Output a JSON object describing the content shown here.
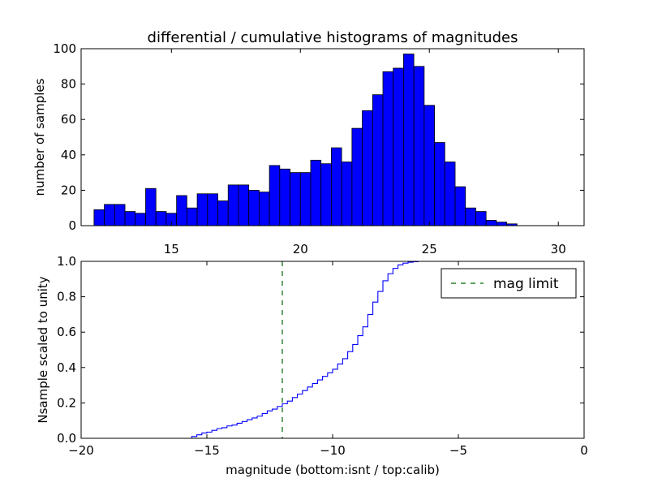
{
  "chart_data": [
    {
      "type": "bar",
      "title": "differential / cumulative histograms of magnitudes",
      "xlabel": "",
      "ylabel": "number of samples",
      "xlim": [
        11.5,
        31
      ],
      "ylim": [
        0,
        100
      ],
      "xticks": [
        "15",
        "20",
        "25",
        "30"
      ],
      "yticks": [
        "0",
        "20",
        "40",
        "60",
        "80",
        "100"
      ],
      "bar_color": "#0000ff",
      "bin_start": 12.0,
      "bin_width": 0.4,
      "values": [
        9,
        12,
        12,
        8,
        7,
        21,
        8,
        7,
        17,
        10,
        18,
        18,
        14,
        23,
        23,
        20,
        19,
        34,
        32,
        30,
        30,
        37,
        35,
        44,
        36,
        55,
        65,
        74,
        87,
        89,
        97,
        90,
        68,
        47,
        36,
        22,
        10,
        8,
        3,
        2,
        1
      ]
    },
    {
      "type": "line",
      "xlabel": "magnitude (bottom:isnt / top:calib)",
      "ylabel": "Nsample scaled to unity",
      "xlim": [
        -20,
        0
      ],
      "ylim": [
        0,
        1.0
      ],
      "xticks": [
        "−20",
        "−15",
        "−10",
        "−5",
        "0"
      ],
      "yticks": [
        "0.0",
        "0.2",
        "0.4",
        "0.6",
        "0.8",
        "1.0"
      ],
      "line_color": "#0000ff",
      "mag_limit": {
        "name": "mag limit",
        "x": -12.0,
        "color": "#006400"
      },
      "legend_position": "top-right",
      "step": {
        "x": [
          -20.0,
          -15.6,
          -15.4,
          -15.2,
          -15.0,
          -14.8,
          -14.6,
          -14.4,
          -14.2,
          -14.0,
          -13.8,
          -13.6,
          -13.4,
          -13.2,
          -13.0,
          -12.8,
          -12.6,
          -12.4,
          -12.2,
          -12.0,
          -11.8,
          -11.6,
          -11.4,
          -11.2,
          -11.0,
          -10.8,
          -10.6,
          -10.4,
          -10.2,
          -10.0,
          -9.8,
          -9.6,
          -9.4,
          -9.2,
          -9.0,
          -8.8,
          -8.6,
          -8.4,
          -8.2,
          -8.0,
          -7.8,
          -7.6,
          -7.4,
          -7.2,
          -7.0,
          -6.8,
          -6.6,
          -6.4,
          -6.2,
          -6.0,
          -0.05
        ],
        "y": [
          0.0,
          0.01,
          0.02,
          0.03,
          0.035,
          0.045,
          0.055,
          0.06,
          0.07,
          0.075,
          0.085,
          0.095,
          0.105,
          0.115,
          0.125,
          0.14,
          0.155,
          0.165,
          0.18,
          0.195,
          0.21,
          0.23,
          0.25,
          0.27,
          0.29,
          0.31,
          0.33,
          0.35,
          0.37,
          0.39,
          0.42,
          0.45,
          0.49,
          0.53,
          0.58,
          0.63,
          0.7,
          0.77,
          0.83,
          0.89,
          0.93,
          0.96,
          0.98,
          0.99,
          0.995,
          0.998,
          1.0,
          1.0,
          1.0,
          1.0,
          1.0
        ]
      }
    }
  ]
}
